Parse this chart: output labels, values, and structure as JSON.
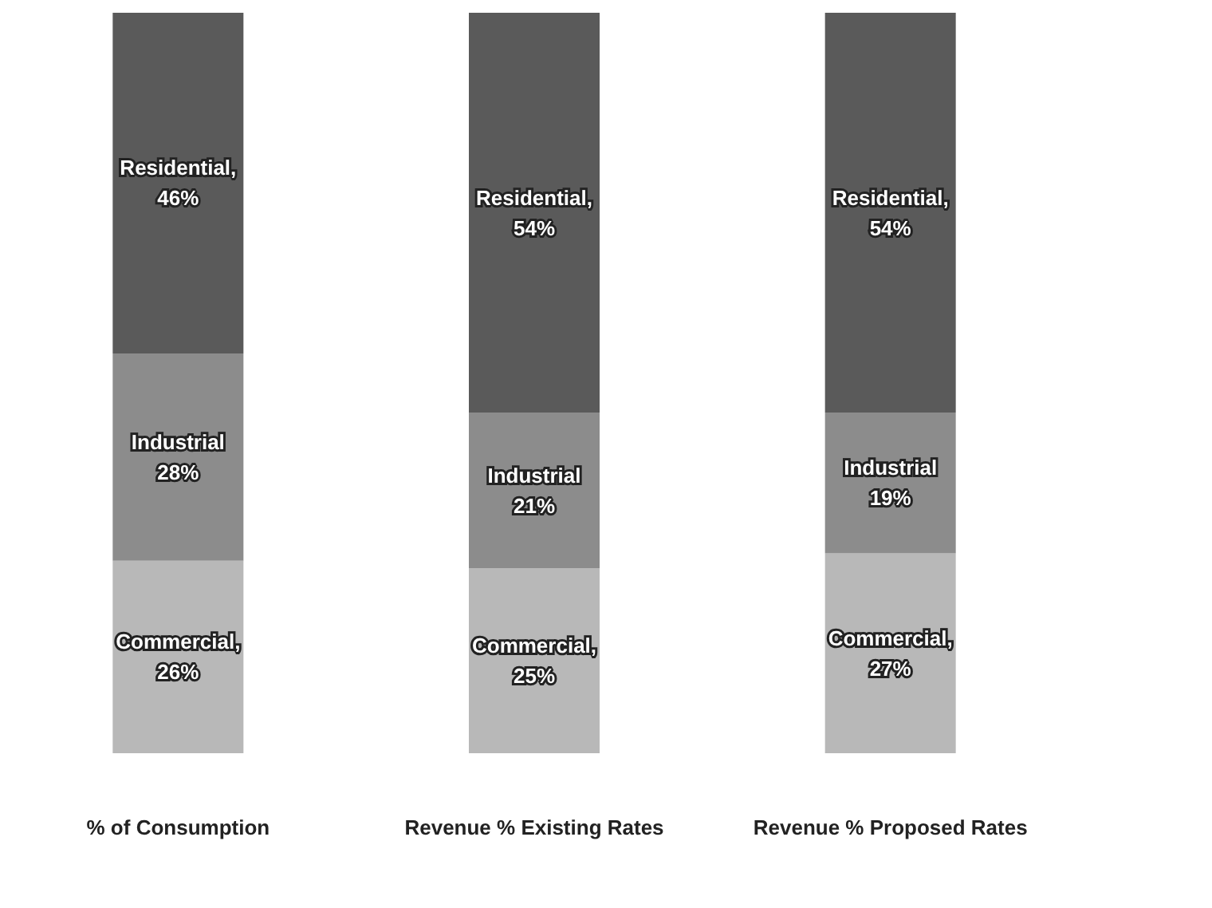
{
  "chart_data": {
    "type": "bar",
    "stacked": true,
    "categories": [
      "% of Consumption",
      "Revenue % Existing Rates",
      "Revenue % Proposed Rates"
    ],
    "series": [
      {
        "color": "#b8b8b8",
        "values": [
          26,
          25,
          27
        ],
        "value_labels": [
          "Commercial,\n26%",
          "Commercial,\n25%",
          "Commercial,\n27%"
        ]
      },
      {
        "color": "#8c8c8c",
        "values": [
          28,
          21,
          19
        ],
        "value_labels": [
          "Industrial\n28%",
          "Industrial\n21%",
          "Industrial\n19%"
        ]
      },
      {
        "color": "#5a5a5a",
        "values": [
          46,
          54,
          54
        ],
        "value_labels": [
          "Residential,\n46%",
          "Residential,\n54%",
          "Residential,\n54%"
        ]
      }
    ],
    "grid": false,
    "tick_labels": "x"
  }
}
